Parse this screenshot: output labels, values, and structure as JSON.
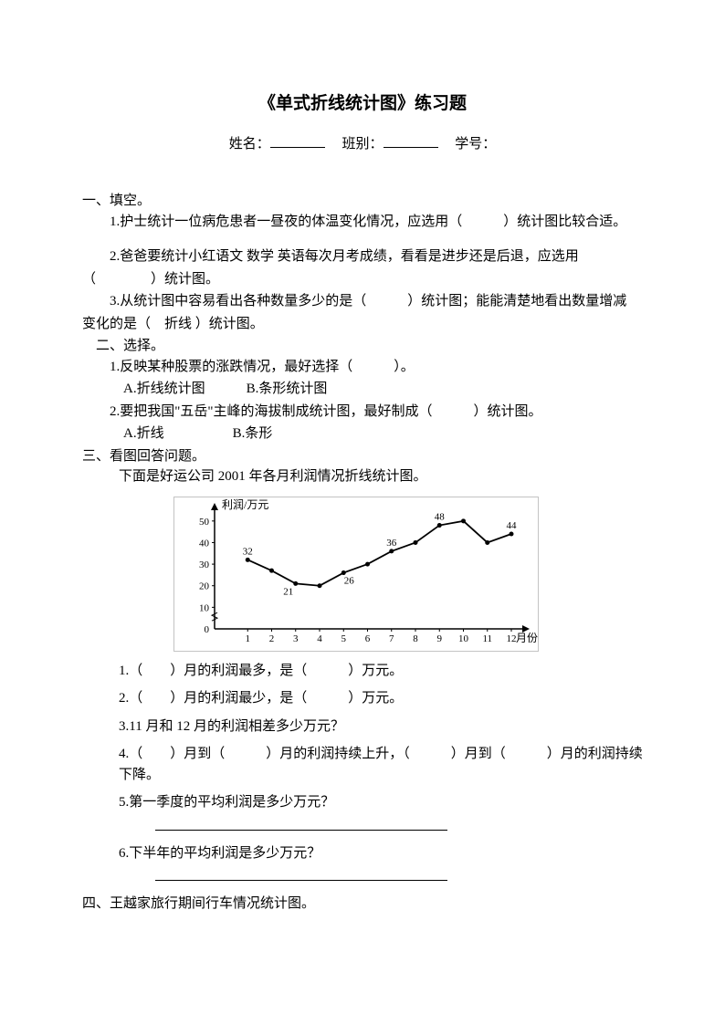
{
  "title": "《单式折线统计图》练习题",
  "header": {
    "name_label": "姓名：",
    "class_label": "班别：",
    "id_label": "学号："
  },
  "section1": {
    "heading": "一、填空。",
    "q1": "1.护士统计一位病危患者一昼夜的体温变化情况，应选用（　　　）统计图比较合适。",
    "q2_part1": "2.爸爸要统计小红语文 数学 英语每次月考成绩，看看是进步还是后退，应选用",
    "q2_part2": "（　　　　）统计图。",
    "q3_part1": "3.从统计图中容易看出各种数量多少的是（　　　）统计图；能能清楚地看出数量增减",
    "q3_part2": "变化的是（　折线 ）统计图。"
  },
  "section2": {
    "heading": "二、选择。",
    "q1": "1.反映某种股票的涨跌情况，最好选择（　　　）。",
    "q1_opts": "A.折线统计图　　　B.条形统计图",
    "q2": "2.要把我国\"五岳\"主峰的海拔制成统计图，最好制成（　　　）统计图。",
    "q2_opts": "A.折线　　　　　B.条形"
  },
  "section3": {
    "heading": "三、看图回答问题。",
    "intro": "下面是好运公司 2001 年各月利润情况折线统计图。",
    "q1": "1.（　　）月的利润最多，是（　　　）万元。",
    "q2": "2.（　　）月的利润最少，是（　　　）万元。",
    "q3": "3.11 月和 12 月的利润相差多少万元？",
    "q4": "4.（　　）月到（　　　）月的利润持续上升，（　　　）月到（　　　）月的利润持续下降。",
    "q5": "5.第一季度的平均利润是多少万元？",
    "q6": "6.下半年的平均利润是多少万元？"
  },
  "section4": {
    "heading": "四、王越家旅行期间行车情况统计图。"
  },
  "chart": {
    "type": "line",
    "ylabel": "利润/万元",
    "xlabel": "月份",
    "x_ticks": [
      "1",
      "2",
      "3",
      "4",
      "5",
      "6",
      "7",
      "8",
      "9",
      "10",
      "11",
      "12"
    ],
    "y_ticks": [
      0,
      10,
      20,
      30,
      40,
      50
    ],
    "ylim": [
      0,
      55
    ],
    "values": [
      32,
      27,
      21,
      20,
      26,
      30,
      36,
      40,
      48,
      50,
      40,
      44
    ],
    "point_labels": {
      "0": "32",
      "2": "21",
      "4": "26",
      "6": "36",
      "8": "48",
      "11": "44"
    },
    "line_color": "#000000",
    "background_color": "#ffffff",
    "title_fontsize": 12,
    "label_fontsize": 11,
    "tick_fontsize": 11
  }
}
